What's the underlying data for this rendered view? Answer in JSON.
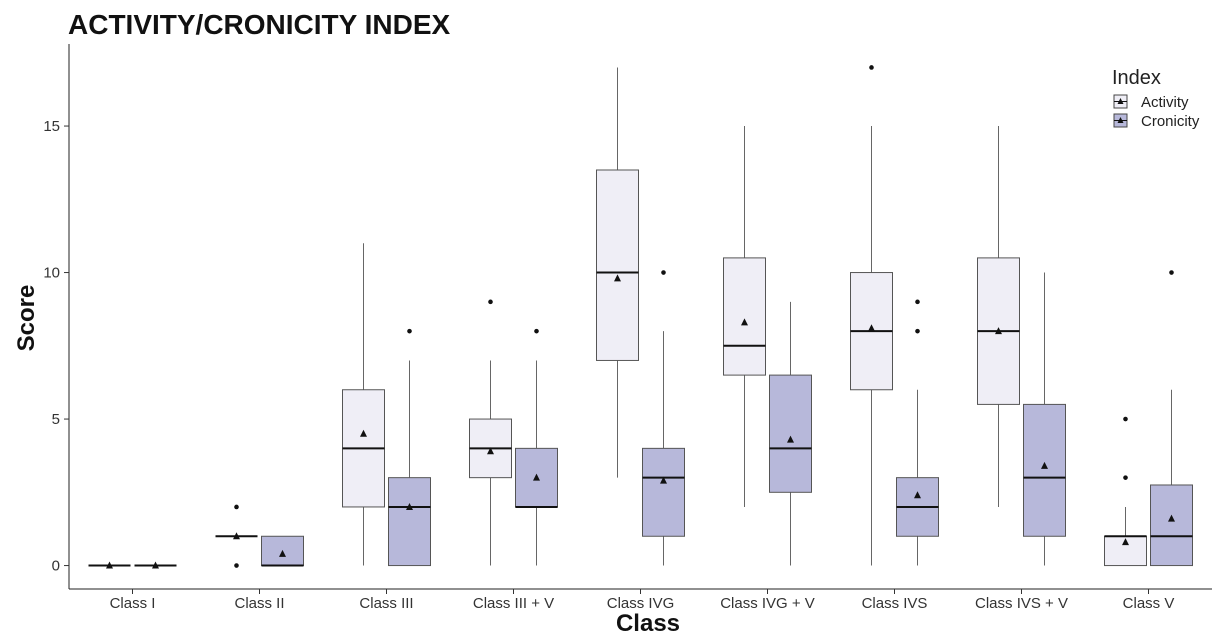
{
  "chart_data": {
    "type": "box",
    "title": "ACTIVITY/CRONICITY INDEX",
    "xlabel": "Class",
    "ylabel": "Score",
    "ylim": [
      -0.8,
      17.8
    ],
    "yticks": [
      0,
      5,
      10,
      15
    ],
    "grid": false,
    "legend": {
      "title": "Index",
      "placement": "top-right",
      "entries": [
        "Activity",
        "Cronicity"
      ]
    },
    "colors": {
      "Activity": "#efeef6",
      "Cronicity": "#b7b8da",
      "outline": "#555555",
      "median": "#111111"
    },
    "categories": [
      "Class I",
      "Class II",
      "Class III",
      "Class III + V",
      "Class IVG",
      "Class IVG + V",
      "Class IVS",
      "Class IVS + V",
      "Class V"
    ],
    "series": [
      {
        "name": "Activity",
        "boxes": [
          {
            "min": 0,
            "q1": 0,
            "median": 0,
            "q3": 0,
            "max": 0,
            "mean": 0,
            "outliers": []
          },
          {
            "min": 1,
            "q1": 1,
            "median": 1,
            "q3": 1,
            "max": 1,
            "mean": 1.0,
            "outliers": [
              0,
              2
            ]
          },
          {
            "min": 0,
            "q1": 2,
            "median": 4,
            "q3": 6,
            "max": 11,
            "mean": 4.5,
            "outliers": []
          },
          {
            "min": 0,
            "q1": 3,
            "median": 4,
            "q3": 5,
            "max": 7,
            "mean": 3.9,
            "outliers": [
              9
            ]
          },
          {
            "min": 3,
            "q1": 7,
            "median": 10,
            "q3": 13.5,
            "max": 17,
            "mean": 9.8,
            "outliers": []
          },
          {
            "min": 2,
            "q1": 6.5,
            "median": 7.5,
            "q3": 10.5,
            "max": 15,
            "mean": 8.3,
            "outliers": []
          },
          {
            "min": 0,
            "q1": 6,
            "median": 8,
            "q3": 10,
            "max": 15,
            "mean": 8.1,
            "outliers": [
              17
            ]
          },
          {
            "min": 2,
            "q1": 5.5,
            "median": 8,
            "q3": 10.5,
            "max": 15,
            "mean": 8.0,
            "outliers": []
          },
          {
            "min": 0,
            "q1": 0,
            "median": 1,
            "q3": 1,
            "max": 2,
            "mean": 0.8,
            "outliers": [
              3,
              5
            ]
          }
        ]
      },
      {
        "name": "Cronicity",
        "boxes": [
          {
            "min": 0,
            "q1": 0,
            "median": 0,
            "q3": 0,
            "max": 0,
            "mean": 0,
            "outliers": []
          },
          {
            "min": 0,
            "q1": 0,
            "median": 0,
            "q3": 1,
            "max": 1,
            "mean": 0.4,
            "outliers": []
          },
          {
            "min": 0,
            "q1": 0,
            "median": 2,
            "q3": 3,
            "max": 7,
            "mean": 2.0,
            "outliers": [
              8
            ]
          },
          {
            "min": 0,
            "q1": 2,
            "median": 2,
            "q3": 4,
            "max": 7,
            "mean": 3.0,
            "outliers": [
              8
            ]
          },
          {
            "min": 0,
            "q1": 1,
            "median": 3,
            "q3": 4,
            "max": 8,
            "mean": 2.9,
            "outliers": [
              10
            ]
          },
          {
            "min": 0,
            "q1": 2.5,
            "median": 4,
            "q3": 6.5,
            "max": 9,
            "mean": 4.3,
            "outliers": []
          },
          {
            "min": 0,
            "q1": 1,
            "median": 2,
            "q3": 3,
            "max": 6,
            "mean": 2.4,
            "outliers": [
              8,
              9
            ]
          },
          {
            "min": 0,
            "q1": 1,
            "median": 3,
            "q3": 5.5,
            "max": 10,
            "mean": 3.4,
            "outliers": []
          },
          {
            "min": 0,
            "q1": 0,
            "median": 1,
            "q3": 2.75,
            "max": 6,
            "mean": 1.6,
            "outliers": [
              10
            ]
          }
        ]
      }
    ]
  }
}
